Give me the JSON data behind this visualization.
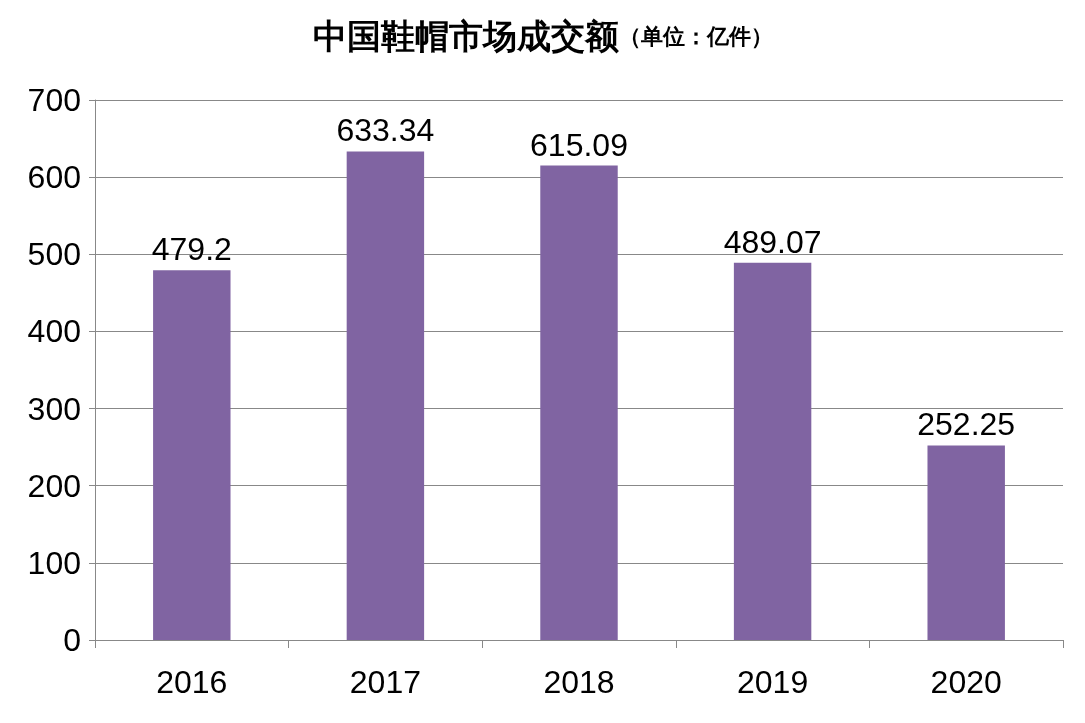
{
  "chart_data": {
    "type": "bar",
    "title": "中国鞋帽市场成交额",
    "subtitle": "（单位：亿件）",
    "categories": [
      "2016",
      "2017",
      "2018",
      "2019",
      "2020"
    ],
    "values": [
      479.2,
      633.34,
      615.09,
      489.07,
      252.25
    ],
    "color": "#8064a2",
    "ylim": [
      0,
      700
    ],
    "yticks": [
      0,
      100,
      200,
      300,
      400,
      500,
      600,
      700
    ],
    "grid": "y",
    "data_labels": true
  }
}
